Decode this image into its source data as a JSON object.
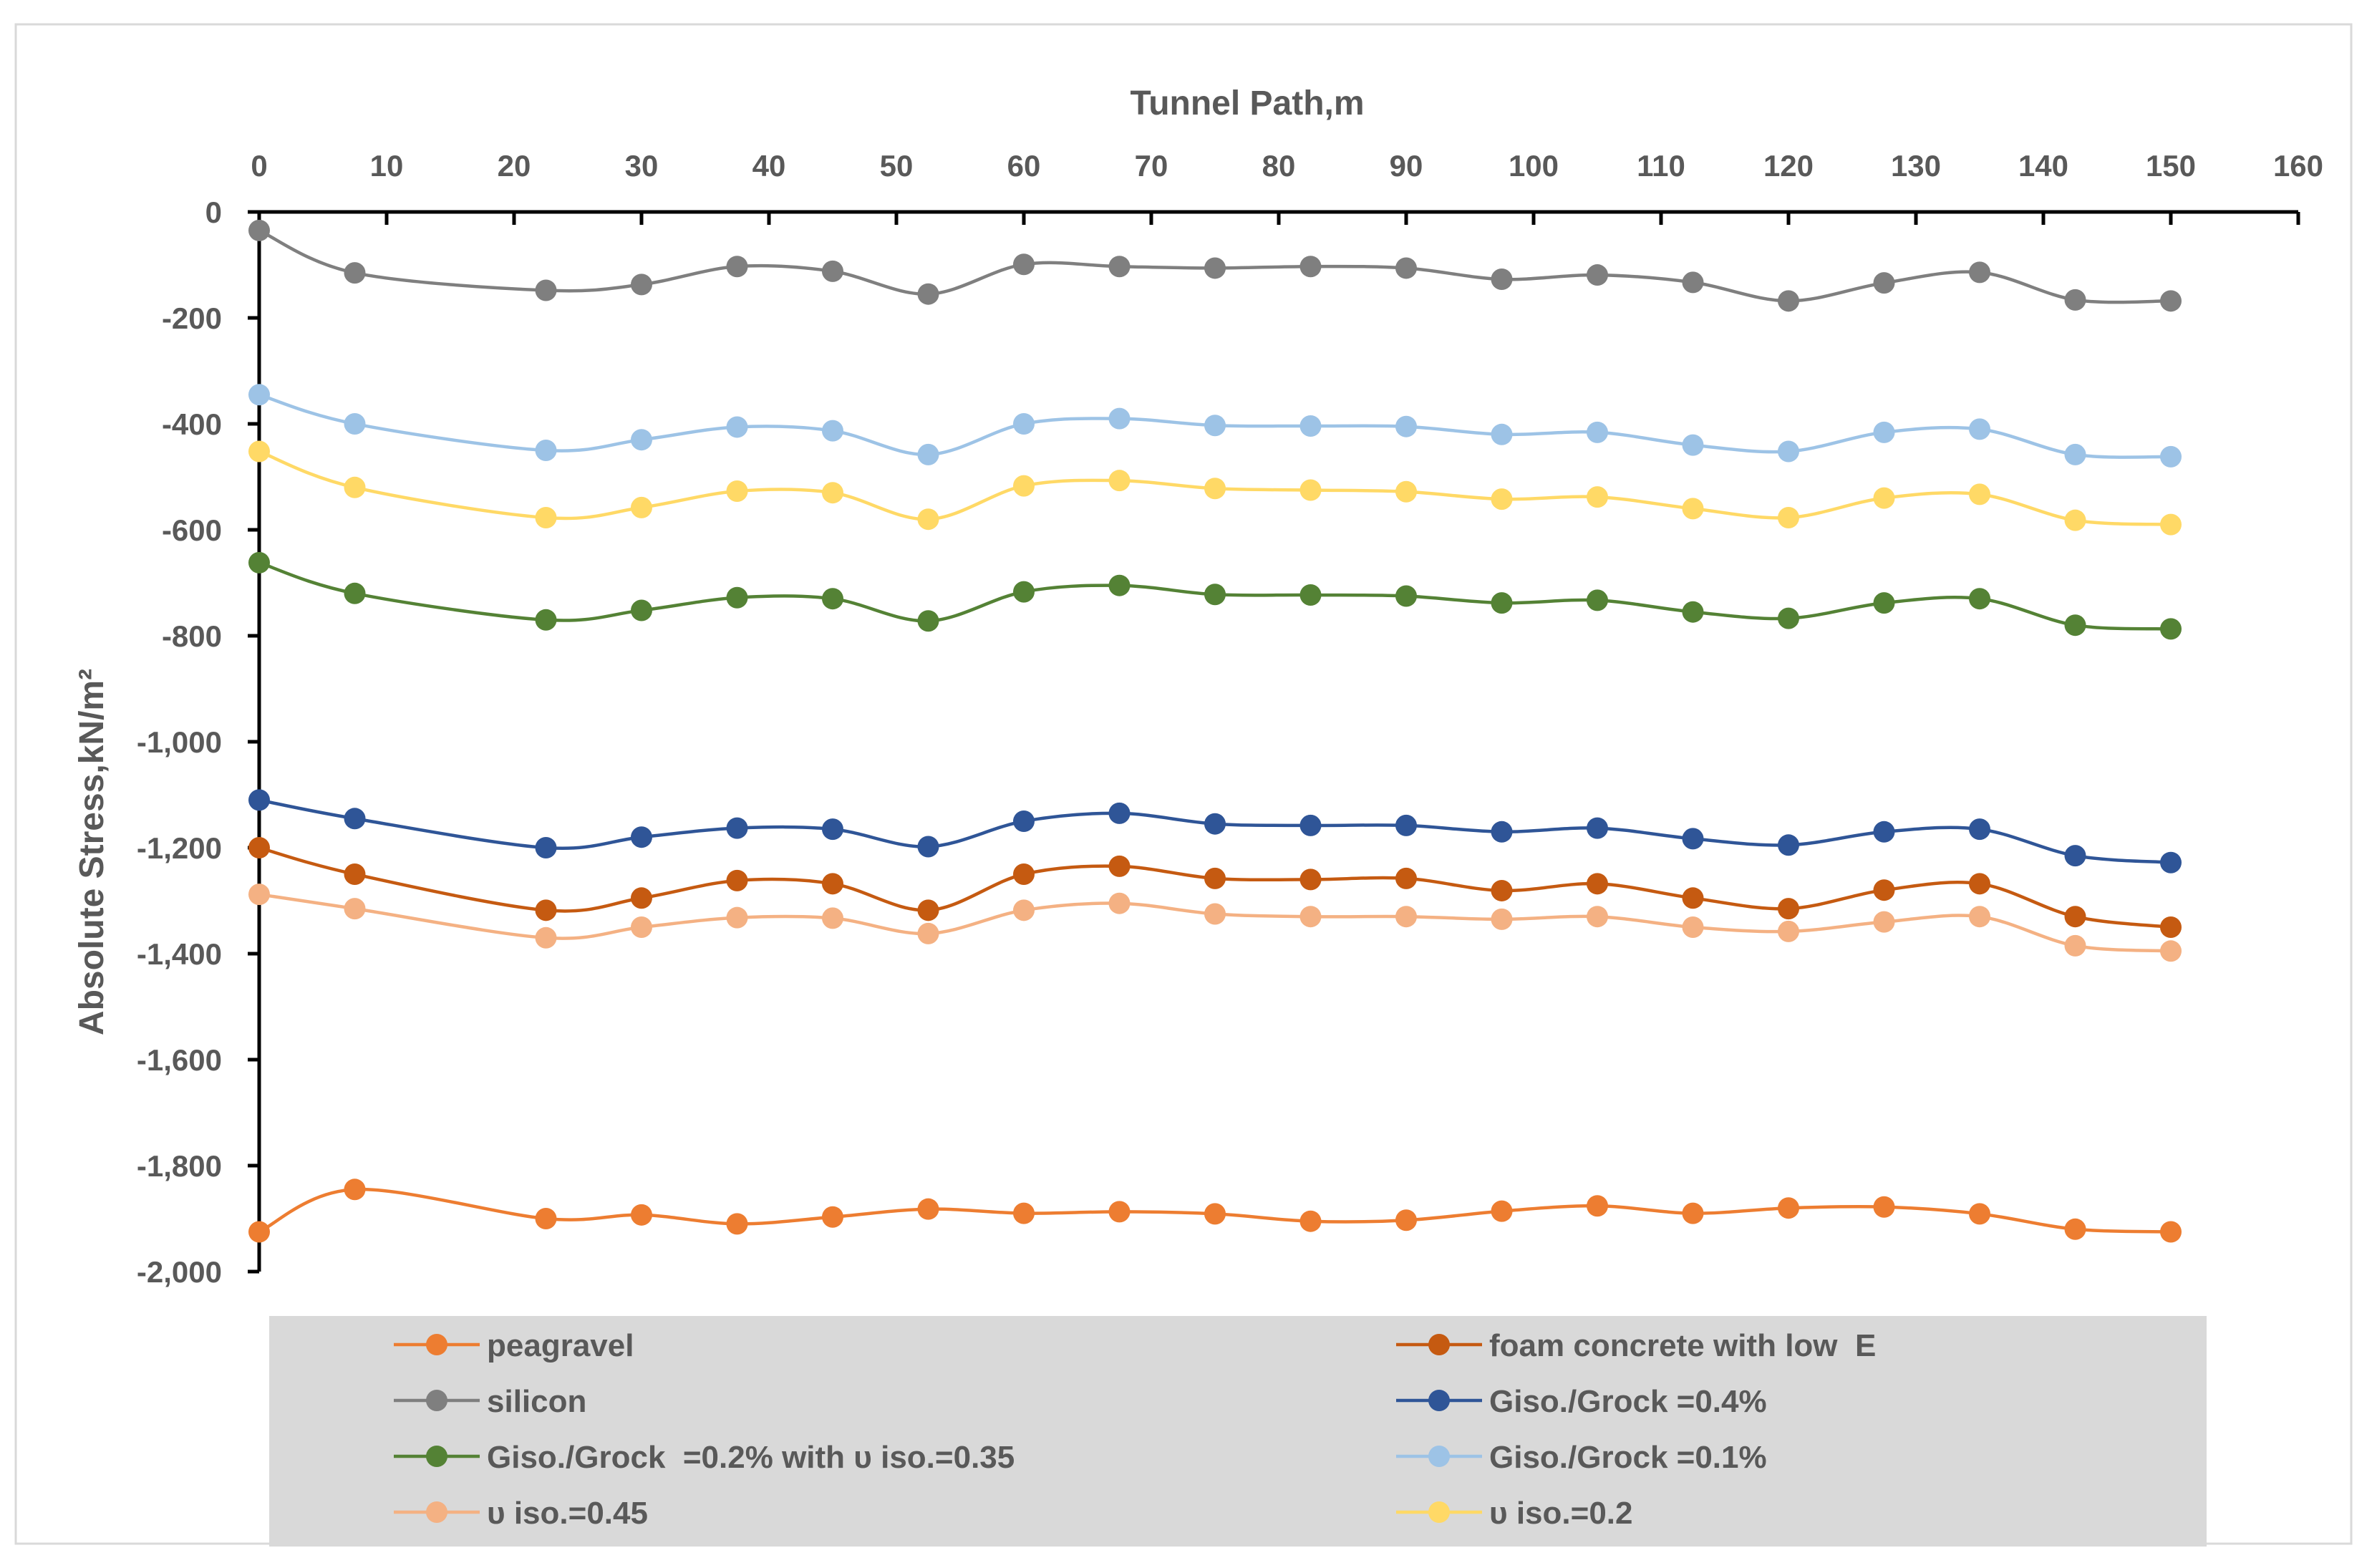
{
  "chart_data": {
    "type": "line",
    "title": "",
    "xlabel": "Tunnel Path,m",
    "ylabel": "Absolute Stress,kN/m²",
    "xlim": [
      0,
      160
    ],
    "ylim": [
      -2000,
      0
    ],
    "x_ticks": [
      "0",
      "10",
      "20",
      "30",
      "40",
      "50",
      "60",
      "70",
      "80",
      "90",
      "100",
      "110",
      "120",
      "130",
      "140",
      "150",
      "160"
    ],
    "y_ticks": [
      "0",
      "-200",
      "-400",
      "-600",
      "-800",
      "-1,000",
      "-1,200",
      "-1,400",
      "-1,600",
      "-1,800",
      "-2,000"
    ],
    "x_axis_position": "top",
    "grid": false,
    "legend_position": "bottom",
    "x": [
      0,
      7.5,
      22.5,
      30,
      37.5,
      45,
      52.5,
      60,
      67.5,
      75,
      82.5,
      90,
      97.5,
      105,
      112.5,
      120,
      127.5,
      135,
      142.5,
      150
    ],
    "series": [
      {
        "name": "peagravel",
        "color": "#ED7D31",
        "values": [
          -1925,
          -1845,
          -1900,
          -1893,
          -1910,
          -1897,
          -1882,
          -1890,
          -1887,
          -1891,
          -1905,
          -1903,
          -1886,
          -1876,
          -1890,
          -1880,
          -1878,
          -1891,
          -1920,
          -1925
        ]
      },
      {
        "name": "foam concrete with low  E",
        "color": "#C55A11",
        "values": [
          -1200,
          -1250,
          -1318,
          -1295,
          -1262,
          -1268,
          -1318,
          -1250,
          -1235,
          -1258,
          -1260,
          -1258,
          -1281,
          -1268,
          -1295,
          -1315,
          -1280,
          -1268,
          -1330,
          -1350
        ]
      },
      {
        "name": "silicon",
        "color": "#7F7F7F",
        "values": [
          -35,
          -115,
          -148,
          -137,
          -103,
          -112,
          -155,
          -99,
          -103,
          -106,
          -103,
          -106,
          -127,
          -119,
          -133,
          -168,
          -134,
          -114,
          -166,
          -168
        ]
      },
      {
        "name": "Giso./Grock =0.4%",
        "color": "#2F5597",
        "values": [
          -1110,
          -1145,
          -1200,
          -1180,
          -1163,
          -1165,
          -1198,
          -1150,
          -1135,
          -1155,
          -1158,
          -1158,
          -1170,
          -1163,
          -1183,
          -1195,
          -1170,
          -1165,
          -1215,
          -1228
        ]
      },
      {
        "name": "Giso./Grock  =0.2% with υ iso.=0.35",
        "color": "#548235",
        "values": [
          -662,
          -720,
          -770,
          -752,
          -728,
          -730,
          -772,
          -717,
          -705,
          -722,
          -723,
          -725,
          -738,
          -733,
          -755,
          -767,
          -738,
          -730,
          -780,
          -787
        ]
      },
      {
        "name": "Giso./Grock =0.1%",
        "color": "#9DC3E6",
        "values": [
          -345,
          -400,
          -450,
          -430,
          -406,
          -413,
          -458,
          -400,
          -390,
          -403,
          -404,
          -405,
          -420,
          -416,
          -440,
          -452,
          -416,
          -410,
          -458,
          -462
        ]
      },
      {
        "name": "υ iso.=0.45",
        "color": "#F4B183",
        "values": [
          -1288,
          -1315,
          -1370,
          -1350,
          -1332,
          -1333,
          -1362,
          -1318,
          -1305,
          -1325,
          -1330,
          -1330,
          -1335,
          -1330,
          -1350,
          -1358,
          -1340,
          -1330,
          -1385,
          -1395
        ]
      },
      {
        "name": "υ iso.=0.2",
        "color": "#FFD966",
        "values": [
          -452,
          -520,
          -577,
          -558,
          -527,
          -530,
          -580,
          -517,
          -507,
          -522,
          -525,
          -528,
          -542,
          -538,
          -560,
          -577,
          -540,
          -533,
          -582,
          -590
        ]
      }
    ],
    "legend_order": [
      0,
      1,
      2,
      3,
      4,
      5,
      6,
      7
    ],
    "legend_background": "#D9D9D9",
    "axis_color": "#000000"
  }
}
